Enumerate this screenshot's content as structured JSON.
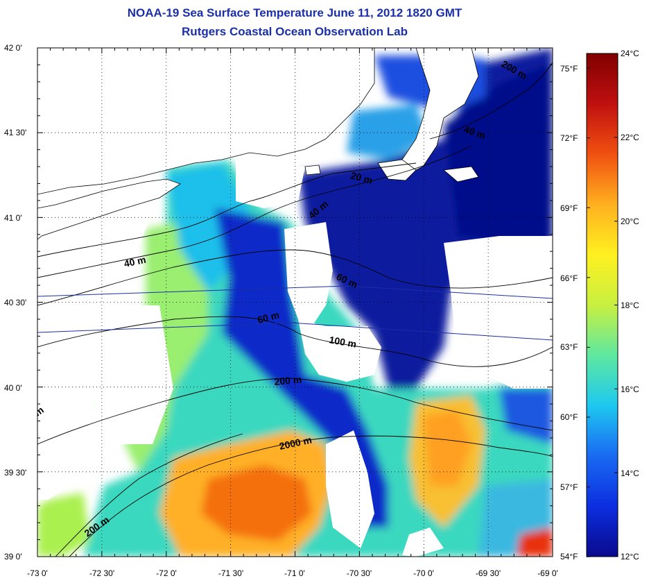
{
  "title": {
    "line1": "NOAA-19 Sea Surface Temperature June 11, 2012 1820 GMT",
    "line2": "Rutgers Coastal Ocean Observation Lab"
  },
  "axes": {
    "lat_labels": [
      "42 0'",
      "41 30'",
      "41 0'",
      "40 30'",
      "40 0'",
      "39 30'",
      "39 0'"
    ],
    "lon_labels": [
      "-73 0'",
      "-72 30'",
      "-72 0'",
      "-71 30'",
      "-71 0'",
      "-70 30'",
      "-70 0'",
      "-69 30'",
      "-69 0'"
    ]
  },
  "colorbar": {
    "celsius_labels": [
      "24°C",
      "22°C",
      "20°C",
      "18°C",
      "16°C",
      "14°C",
      "12°C"
    ],
    "fahrenheit_labels": [
      "75°F",
      "72°F",
      "69°F",
      "66°F",
      "63°F",
      "60°F",
      "57°F",
      "54°F"
    ],
    "colors": [
      "#0a0a8c",
      "#0b2ee0",
      "#1a6af2",
      "#1ec8f0",
      "#5ee8a0",
      "#c8f040",
      "#fff020",
      "#ffb020",
      "#f05010",
      "#c01010",
      "#800000"
    ]
  },
  "contour_labels": [
    "200 m",
    "40 m",
    "20 m",
    "40 m",
    "40 m",
    "60 m",
    "60 m",
    "100 m",
    "200 m",
    "2000 m",
    "200 m",
    "m"
  ],
  "map_colors": {
    "land": "#ffffff",
    "deep_blue": "#0a1aa0",
    "blue": "#1a50e0",
    "cyan": "#1ec8e8",
    "green": "#7ae878",
    "yellow": "#e8f040",
    "orange": "#ffa020",
    "red": "#f04810"
  }
}
